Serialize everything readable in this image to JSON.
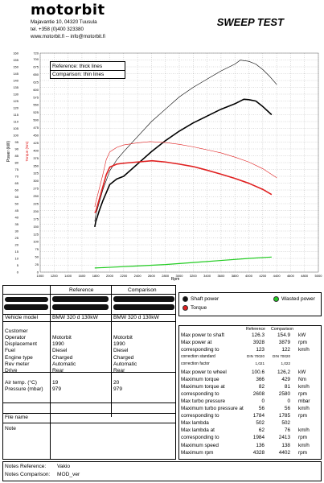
{
  "header": {
    "brand": "motorbit",
    "address_lines": [
      "Majavantie 10, 04320 Tuusula",
      "tel. +358 (0)400 323380",
      "www.motorbit.fi  --  info@motorbit.fi"
    ],
    "title": "SWEEP TEST"
  },
  "legend_box": {
    "reference": "Reference: thick lines",
    "comparison": "Comparison: thin lines"
  },
  "chart_data": {
    "type": "line",
    "xlabel": "Rpm",
    "ylabel_left": "Power (kW)",
    "ylabel_right": "Torque (Nm)",
    "xlim": [
      1000,
      5000
    ],
    "x_ticks": [
      1000,
      1200,
      1400,
      1600,
      1800,
      2000,
      2200,
      2400,
      2600,
      2800,
      3000,
      3200,
      3400,
      3600,
      3800,
      4000,
      4200,
      4400,
      4600,
      4800,
      5000
    ],
    "ylim_power": [
      0,
      160
    ],
    "y_ticks_power": [
      0,
      5,
      10,
      15,
      20,
      25,
      30,
      35,
      40,
      45,
      50,
      55,
      60,
      65,
      70,
      75,
      80,
      85,
      90,
      95,
      100,
      105,
      110,
      115,
      120,
      125,
      130,
      135,
      140,
      145,
      150,
      155,
      160
    ],
    "ylim_torque": [
      0,
      720
    ],
    "y_ticks_torque": [
      0,
      25,
      50,
      75,
      100,
      125,
      150,
      175,
      200,
      225,
      250,
      275,
      300,
      325,
      350,
      375,
      400,
      425,
      450,
      475,
      500,
      525,
      550,
      575,
      600,
      625,
      650,
      675,
      700,
      720
    ],
    "series": [
      {
        "name": "Shaft power",
        "run": "reference",
        "color": "#000000",
        "axis": "power",
        "width": 1.6,
        "x": [
          1784,
          1800,
          1850,
          1900,
          1950,
          2000,
          2100,
          2200,
          2400,
          2600,
          2800,
          3000,
          3200,
          3400,
          3600,
          3800,
          3928,
          4000,
          4100,
          4200,
          4328
        ],
        "y": [
          33,
          37,
          45,
          52,
          58,
          64,
          68,
          70,
          79,
          88,
          96,
          103,
          109,
          114,
          119,
          123,
          126.3,
          126,
          125,
          121,
          115
        ]
      },
      {
        "name": "Shaft power",
        "run": "comparison",
        "color": "#000000",
        "axis": "power",
        "width": 0.6,
        "x": [
          1785,
          1800,
          1900,
          2000,
          2100,
          2200,
          2400,
          2600,
          2800,
          3000,
          3200,
          3400,
          3600,
          3800,
          3879,
          4000,
          4100,
          4200,
          4300,
          4402
        ],
        "y": [
          37,
          42,
          60,
          74,
          82,
          88,
          99,
          110,
          119,
          128,
          135,
          141,
          147,
          152,
          154.9,
          154,
          152,
          148,
          143,
          137
        ]
      },
      {
        "name": "Torque",
        "run": "reference",
        "color": "#e02020",
        "axis": "torque",
        "width": 1.6,
        "x": [
          1784,
          1800,
          1900,
          1950,
          2000,
          2100,
          2200,
          2400,
          2608,
          2800,
          3000,
          3200,
          3400,
          3600,
          3800,
          4000,
          4200,
          4328
        ],
        "y": [
          195,
          200,
          280,
          320,
          345,
          355,
          358,
          362,
          366,
          362,
          355,
          347,
          335,
          322,
          308,
          292,
          272,
          255
        ]
      },
      {
        "name": "Torque",
        "run": "comparison",
        "color": "#e02020",
        "axis": "torque",
        "width": 0.6,
        "x": [
          1785,
          1800,
          1900,
          1950,
          2000,
          2100,
          2200,
          2400,
          2580,
          2800,
          3000,
          3200,
          3400,
          3600,
          3800,
          4000,
          4200,
          4402
        ],
        "y": [
          215,
          230,
          320,
          370,
          395,
          410,
          418,
          425,
          429,
          426,
          420,
          412,
          402,
          392,
          378,
          362,
          340,
          310
        ]
      },
      {
        "name": "Wasted power",
        "run": "reference",
        "color": "#22cc22",
        "axis": "power",
        "width": 1.2,
        "x": [
          1784,
          2000,
          2400,
          2800,
          3200,
          3600,
          4000,
          4328
        ],
        "y": [
          3,
          3.5,
          4.5,
          5.5,
          7,
          8.5,
          10,
          11
        ]
      }
    ]
  },
  "info_table": {
    "col_reference": "Reference",
    "col_comparison": "Comparison",
    "labels": [
      "Vehicle model",
      "Customer",
      "Operator",
      "Displacement",
      "Fuel",
      "Engine type",
      "Rev meter",
      "Drive"
    ],
    "reference_values": [
      "BMW 320 d 130kW",
      "",
      "Motorbit",
      "1990",
      "Diesel",
      "Charged",
      "Automatic",
      "Rear"
    ],
    "comparison_values": [
      "BMW 320 d 130kW",
      "",
      "Motorbit",
      "1990",
      "Diesel",
      "Charged",
      "Automatic",
      "Rear"
    ],
    "labels2": [
      "Air temp. (°C)",
      "Pressure (mbar)"
    ],
    "reference_values2": [
      "19",
      "979"
    ],
    "comparison_values2": [
      "20",
      "979"
    ],
    "file_name": "File name",
    "note": "Note"
  },
  "legend": {
    "shaft": "Shaft power",
    "torque": "Torque",
    "wasted": "Wasted power"
  },
  "stats": {
    "header_reference": "Reference",
    "header_comparison": "Comparison",
    "rows": [
      {
        "label": "Max power to shaft",
        "ref": "126.3",
        "cmp": "154.9",
        "unit": "kW"
      },
      {
        "label": "Max power at",
        "ref": "3928",
        "cmp": "3879",
        "unit": "rpm"
      },
      {
        "label": "corresponding to",
        "ref": "123",
        "cmp": "122",
        "unit": "km/h"
      },
      {
        "label": "correction standard",
        "ref": "DIN 70020",
        "cmp": "DIN 70020",
        "unit": ""
      },
      {
        "label": "correction factor",
        "ref": "1,021",
        "cmp": "1,022",
        "unit": ""
      },
      {
        "label": "Max power to wheel",
        "ref": "100.6",
        "cmp": "126,2",
        "unit": "kW"
      },
      {
        "label": "Maximum torque",
        "ref": "366",
        "cmp": "429",
        "unit": "Nm"
      },
      {
        "label": "Maximum torque at",
        "ref": "82",
        "cmp": "81",
        "unit": "km/h"
      },
      {
        "label": "corresponding to",
        "ref": "2608",
        "cmp": "2580",
        "unit": "rpm"
      },
      {
        "label": "Max turbo pressure",
        "ref": "0",
        "cmp": "0",
        "unit": "mbar"
      },
      {
        "label": "Maximum turbo pressure at",
        "ref": "56",
        "cmp": "56",
        "unit": "km/h"
      },
      {
        "label": "corresponding to",
        "ref": "1784",
        "cmp": "1785",
        "unit": "rpm"
      },
      {
        "label": "Max lambda",
        "ref": "502",
        "cmp": "502",
        "unit": ""
      },
      {
        "label": "Max lambda at",
        "ref": "62",
        "cmp": "76",
        "unit": "km/h"
      },
      {
        "label": "corresponding to",
        "ref": "1984",
        "cmp": "2413",
        "unit": "rpm"
      },
      {
        "label": "Maximum speed",
        "ref": "136",
        "cmp": "138",
        "unit": "km/h"
      },
      {
        "label": "Maximum rpm",
        "ref": "4328",
        "cmp": "4402",
        "unit": "rpm"
      }
    ]
  },
  "notes": {
    "reference_label": "Notes Reference:",
    "reference_value": "Vakio",
    "comparison_label": "Notes Comparison:",
    "comparison_value": "MOD_ver"
  }
}
